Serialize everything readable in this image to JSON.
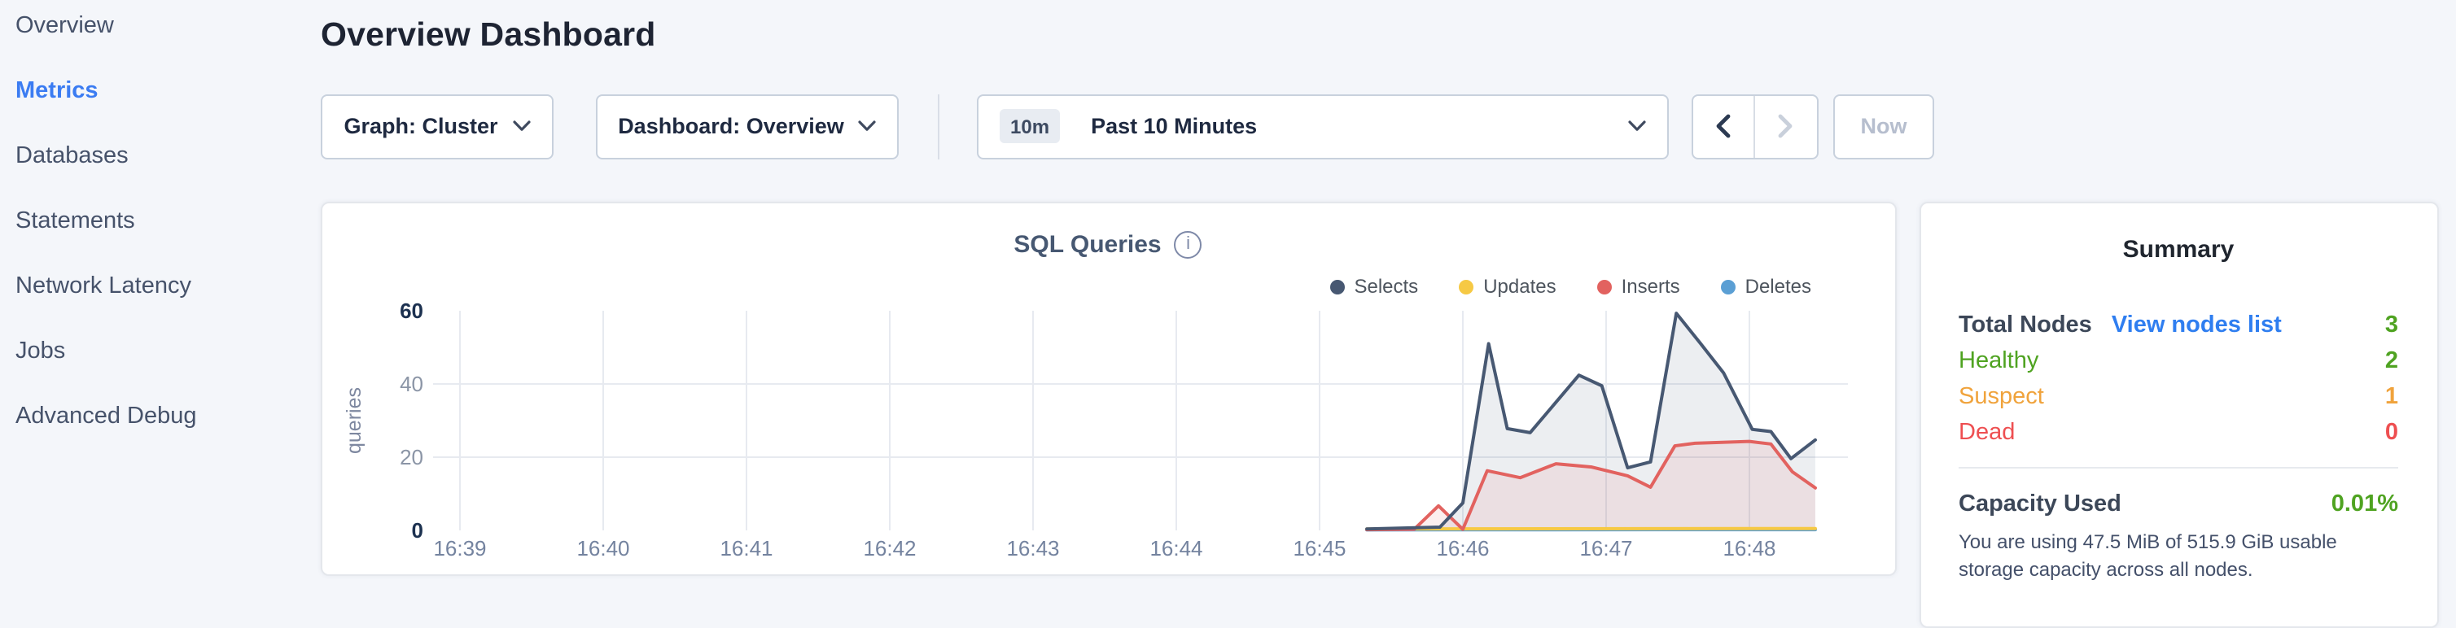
{
  "sidebar": {
    "items": [
      {
        "label": "Overview",
        "active": false
      },
      {
        "label": "Metrics",
        "active": true
      },
      {
        "label": "Databases",
        "active": false
      },
      {
        "label": "Statements",
        "active": false
      },
      {
        "label": "Network Latency",
        "active": false
      },
      {
        "label": "Jobs",
        "active": false
      },
      {
        "label": "Advanced Debug",
        "active": false
      }
    ]
  },
  "header": {
    "title": "Overview Dashboard"
  },
  "toolbar": {
    "graph_dropdown_label": "Graph: Cluster",
    "dashboard_dropdown_label": "Dashboard: Overview",
    "time_badge": "10m",
    "time_label": "Past 10 Minutes",
    "now_label": "Now"
  },
  "summary": {
    "title": "Summary",
    "total_nodes": {
      "label": "Total Nodes",
      "link": "View nodes list",
      "value": "3"
    },
    "statuses": [
      {
        "label": "Healthy",
        "value": "2",
        "color": "#4fa321"
      },
      {
        "label": "Suspect",
        "value": "1",
        "color": "#f0a33c"
      },
      {
        "label": "Dead",
        "value": "0",
        "color": "#ee4f51"
      }
    ],
    "capacity": {
      "label": "Capacity Used",
      "value": "0.01%",
      "description": "You are using 47.5 MiB of 515.9 GiB usable storage capacity across all nodes."
    }
  },
  "colors": {
    "accent_blue": "#3b7cf2",
    "link_blue": "#2f7ef0",
    "green": "#4fa321",
    "orange": "#f0a33c",
    "red": "#ee4f51",
    "card_bg": "#ffffff",
    "page_bg": "#f4f6fa"
  },
  "chart_data": {
    "type": "area",
    "title": "SQL Queries",
    "ylabel": "queries",
    "x_unit": "minutes after 16:39",
    "x_tick_labels": [
      "16:39",
      "16:40",
      "16:41",
      "16:42",
      "16:43",
      "16:44",
      "16:45",
      "16:46",
      "16:47",
      "16:48"
    ],
    "ylim": [
      0,
      60
    ],
    "y_ticks": [
      0,
      20,
      40,
      60
    ],
    "grid_y": [
      20,
      40
    ],
    "legend_position": "top-right",
    "series": [
      {
        "name": "Selects",
        "color": "#475872",
        "fill": true,
        "points": [
          [
            6.33,
            0.4
          ],
          [
            6.84,
            0.9
          ],
          [
            7.0,
            7.5
          ],
          [
            7.18,
            51
          ],
          [
            7.31,
            27.8
          ],
          [
            7.47,
            26.7
          ],
          [
            7.81,
            42.4
          ],
          [
            7.97,
            39.5
          ],
          [
            8.15,
            17.1
          ],
          [
            8.31,
            18.7
          ],
          [
            8.49,
            59.3
          ],
          [
            8.66,
            51
          ],
          [
            8.82,
            43
          ],
          [
            9.02,
            27.6
          ],
          [
            9.15,
            27
          ],
          [
            9.29,
            19.6
          ],
          [
            9.46,
            24.7
          ]
        ]
      },
      {
        "name": "Updates",
        "color": "#f6c944",
        "fill": false,
        "points": [
          [
            6.33,
            0.4
          ],
          [
            9.46,
            0.5
          ]
        ]
      },
      {
        "name": "Inserts",
        "color": "#e2625f",
        "fill": true,
        "points": [
          [
            6.33,
            0.2
          ],
          [
            6.66,
            0.3
          ],
          [
            6.83,
            6.7
          ],
          [
            7.0,
            0.3
          ],
          [
            7.17,
            16.3
          ],
          [
            7.4,
            14.4
          ],
          [
            7.65,
            18.2
          ],
          [
            7.9,
            17.3
          ],
          [
            8.15,
            14.9
          ],
          [
            8.31,
            11.8
          ],
          [
            8.48,
            23.1
          ],
          [
            8.62,
            23.8
          ],
          [
            9.0,
            24.3
          ],
          [
            9.15,
            23.6
          ],
          [
            9.3,
            16
          ],
          [
            9.46,
            11.6
          ]
        ]
      },
      {
        "name": "Deletes",
        "color": "#5b9fd4",
        "fill": false,
        "points": [
          [
            6.33,
            0.15
          ],
          [
            9.46,
            0.2
          ]
        ]
      }
    ],
    "draw_order": [
      3,
      1,
      2,
      0
    ]
  }
}
